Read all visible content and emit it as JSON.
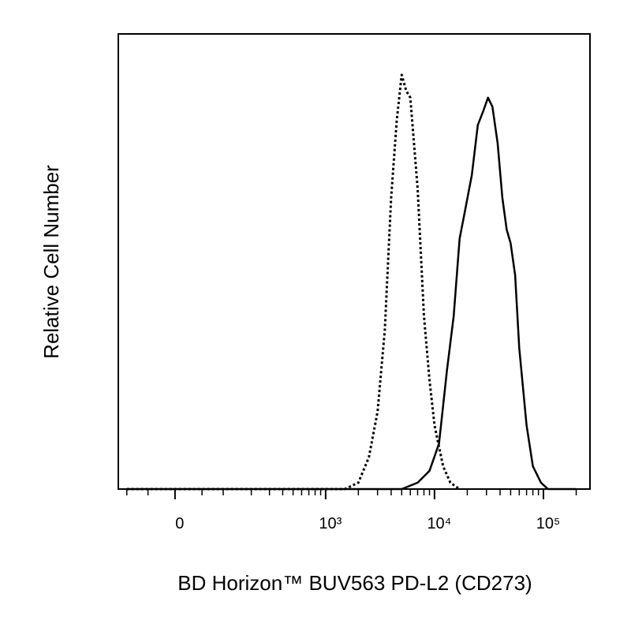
{
  "chart_data": {
    "type": "line",
    "xlabel": "BD Horizon™ BUV563 PD-L2 (CD273)",
    "ylabel": "Relative Cell Number",
    "xscale": "biexponential",
    "xlim": [
      -125,
      267500
    ],
    "ylim": [
      0,
      100
    ],
    "xticks": [
      {
        "value": 0,
        "label": "0"
      },
      {
        "value": 1000,
        "label": "10³"
      },
      {
        "value": 10000,
        "label": "10⁴"
      },
      {
        "value": 100000,
        "label": "10⁵"
      }
    ],
    "xminorticks": [
      -100,
      -50,
      50,
      100,
      200,
      300,
      400,
      500,
      600,
      700,
      800,
      900,
      2000,
      3000,
      4000,
      5000,
      6000,
      7000,
      8000,
      9000,
      20000,
      30000,
      40000,
      50000,
      60000,
      70000,
      80000,
      90000,
      200000
    ],
    "series": [
      {
        "color": "#000000",
        "dash": true,
        "x": [
          -100,
          0,
          500,
          1000,
          1500,
          2000,
          2500,
          3000,
          3500,
          4000,
          4500,
          5000,
          5500,
          6000,
          7000,
          8000,
          9000,
          10000,
          12000,
          14000,
          17000
        ],
        "values": [
          0,
          0,
          0,
          0,
          0,
          1.4,
          7,
          17,
          35,
          64,
          81,
          91,
          87.5,
          86,
          66,
          38,
          24,
          14,
          5,
          1.4,
          0
        ]
      },
      {
        "color": "#000000",
        "dash": false,
        "x": [
          -100,
          0,
          1000,
          5000,
          7000,
          9000,
          11000,
          13000,
          15000,
          17000,
          19000,
          22000,
          25000,
          28000,
          31000,
          34000,
          38000,
          42000,
          46000,
          50000,
          55000,
          60000,
          70000,
          80000,
          95000,
          110000,
          200000
        ],
        "values": [
          0,
          0,
          0,
          0,
          1.4,
          4,
          10,
          26,
          38,
          55,
          61,
          69,
          80,
          83,
          86,
          84,
          76,
          64,
          57,
          54,
          47,
          31,
          14,
          5,
          1.4,
          0,
          0
        ]
      }
    ]
  }
}
